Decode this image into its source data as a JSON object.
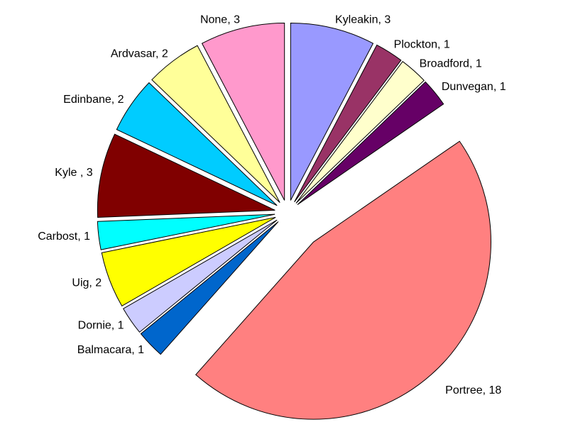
{
  "chart_data": {
    "type": "pie",
    "values": [
      3,
      1,
      1,
      1,
      18,
      1,
      1,
      2,
      1,
      3,
      2,
      2,
      3
    ],
    "value_labels": [
      "Kyleakin, 3",
      "Plockton, 1",
      "Broadford, 1",
      "Dunvegan, 1",
      "Portree, 18",
      "Balmacara, 1",
      "Dornie, 1",
      "Uig, 2",
      "Carbost, 1",
      "Kyle , 3",
      "Edinbane, 2",
      "Ardvasar, 2",
      "None, 3"
    ],
    "colors": [
      "#9999ff",
      "#993366",
      "#ffffcc",
      "#660066",
      "#ff8080",
      "#0066cc",
      "#ccccff",
      "#ffff00",
      "#00ffff",
      "#800000",
      "#00ccff",
      "#ffff99",
      "#ff99cc"
    ]
  }
}
